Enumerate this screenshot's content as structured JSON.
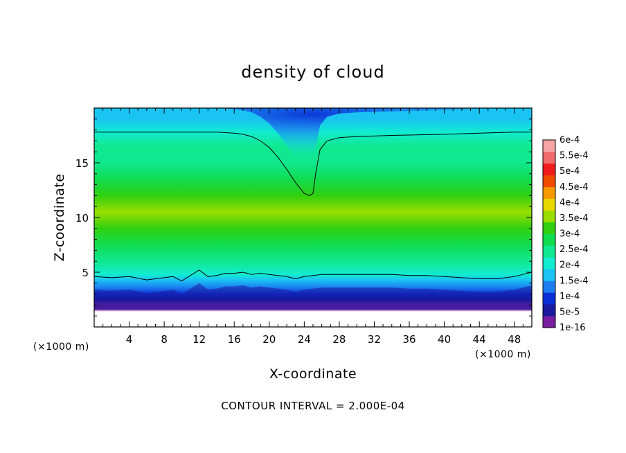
{
  "chart_data": {
    "type": "heatmap",
    "title": "density of cloud",
    "xlabel": "X-coordinate",
    "ylabel": "Z-coordinate",
    "x_unit_left": "(×1000 m)",
    "x_unit_right": "(×1000 m)",
    "xlim": [
      0,
      50
    ],
    "ylim": [
      0,
      20
    ],
    "x_ticks": [
      4,
      8,
      12,
      16,
      20,
      24,
      28,
      32,
      36,
      40,
      44,
      48
    ],
    "y_ticks": [
      5,
      10,
      15
    ],
    "contour_interval_text": "CONTOUR INTERVAL = 2.000E-04",
    "colorbar": {
      "labels": [
        "1e-16",
        "5e-5",
        "1e-4",
        "1.5e-4",
        "2e-4",
        "2.5e-4",
        "3e-4",
        "3.5e-4",
        "4e-4",
        "4.5e-4",
        "5e-4",
        "5.5e-4",
        "6e-4"
      ],
      "colors": [
        "#7a1fa0",
        "#1a1a9c",
        "#0b2fd6",
        "#1c7ef0",
        "#1ac4f2",
        "#12ecd0",
        "#10e890",
        "#10dc50",
        "#30d010",
        "#9ade00",
        "#e8d800",
        "#f59a00",
        "#f04a00",
        "#ee1c1c",
        "#f06c6c",
        "#f7a4a4"
      ]
    },
    "contour_level": 0.0002,
    "contour_lines": [
      {
        "level": "2e-4",
        "x": [
          0,
          4,
          8,
          12,
          14,
          16,
          17,
          18,
          19,
          20,
          21,
          22,
          23,
          24,
          24.6,
          25,
          25.3,
          25.8,
          26.6,
          28,
          30,
          34,
          40,
          44,
          48,
          50
        ],
        "z": [
          17.8,
          17.8,
          17.8,
          17.8,
          17.8,
          17.7,
          17.6,
          17.4,
          17.0,
          16.4,
          15.5,
          14.4,
          13.2,
          12.2,
          12.0,
          12.2,
          14.0,
          16.2,
          17.0,
          17.3,
          17.4,
          17.5,
          17.6,
          17.7,
          17.8,
          17.8
        ]
      },
      {
        "level": "2e-4",
        "x": [
          0,
          2,
          4,
          6,
          8,
          9,
          10,
          11,
          12,
          13,
          14,
          15,
          16,
          17,
          18,
          19,
          20,
          22,
          23,
          24,
          26,
          28,
          30,
          34,
          36,
          38,
          40,
          42,
          44,
          46,
          48,
          50
        ],
        "z": [
          4.6,
          4.5,
          4.6,
          4.3,
          4.5,
          4.6,
          4.2,
          4.7,
          5.2,
          4.6,
          4.7,
          4.9,
          4.9,
          5.0,
          4.8,
          4.9,
          4.8,
          4.6,
          4.4,
          4.6,
          4.8,
          4.8,
          4.8,
          4.8,
          4.7,
          4.7,
          4.6,
          4.5,
          4.4,
          4.4,
          4.6,
          5.0
        ]
      }
    ],
    "field_bands": [
      {
        "z": 0.0,
        "value": null
      },
      {
        "z": 1.4,
        "value": null
      },
      {
        "z": 1.6,
        "value": 0.0
      },
      {
        "z": 2.1,
        "value": 2e-05
      },
      {
        "z": 2.5,
        "value": 4e-05
      },
      {
        "z": 3.0,
        "value": 8e-05
      },
      {
        "z": 3.6,
        "value": 0.00012
      },
      {
        "z": 4.3,
        "value": 0.00017
      },
      {
        "z": 4.8,
        "value": 0.0002
      },
      {
        "z": 6.0,
        "value": 0.00024
      },
      {
        "z": 7.5,
        "value": 0.00029
      },
      {
        "z": 9.0,
        "value": 0.00033
      },
      {
        "z": 10.5,
        "value": 0.00034
      },
      {
        "z": 12.0,
        "value": 0.00031
      },
      {
        "z": 13.5,
        "value": 0.00027
      },
      {
        "z": 15.0,
        "value": 0.00025
      },
      {
        "z": 16.5,
        "value": 0.00023
      },
      {
        "z": 17.8,
        "value": 0.0002
      },
      {
        "z": 19.0,
        "value": 0.00018
      },
      {
        "z": 20.0,
        "value": 0.00016
      }
    ]
  }
}
